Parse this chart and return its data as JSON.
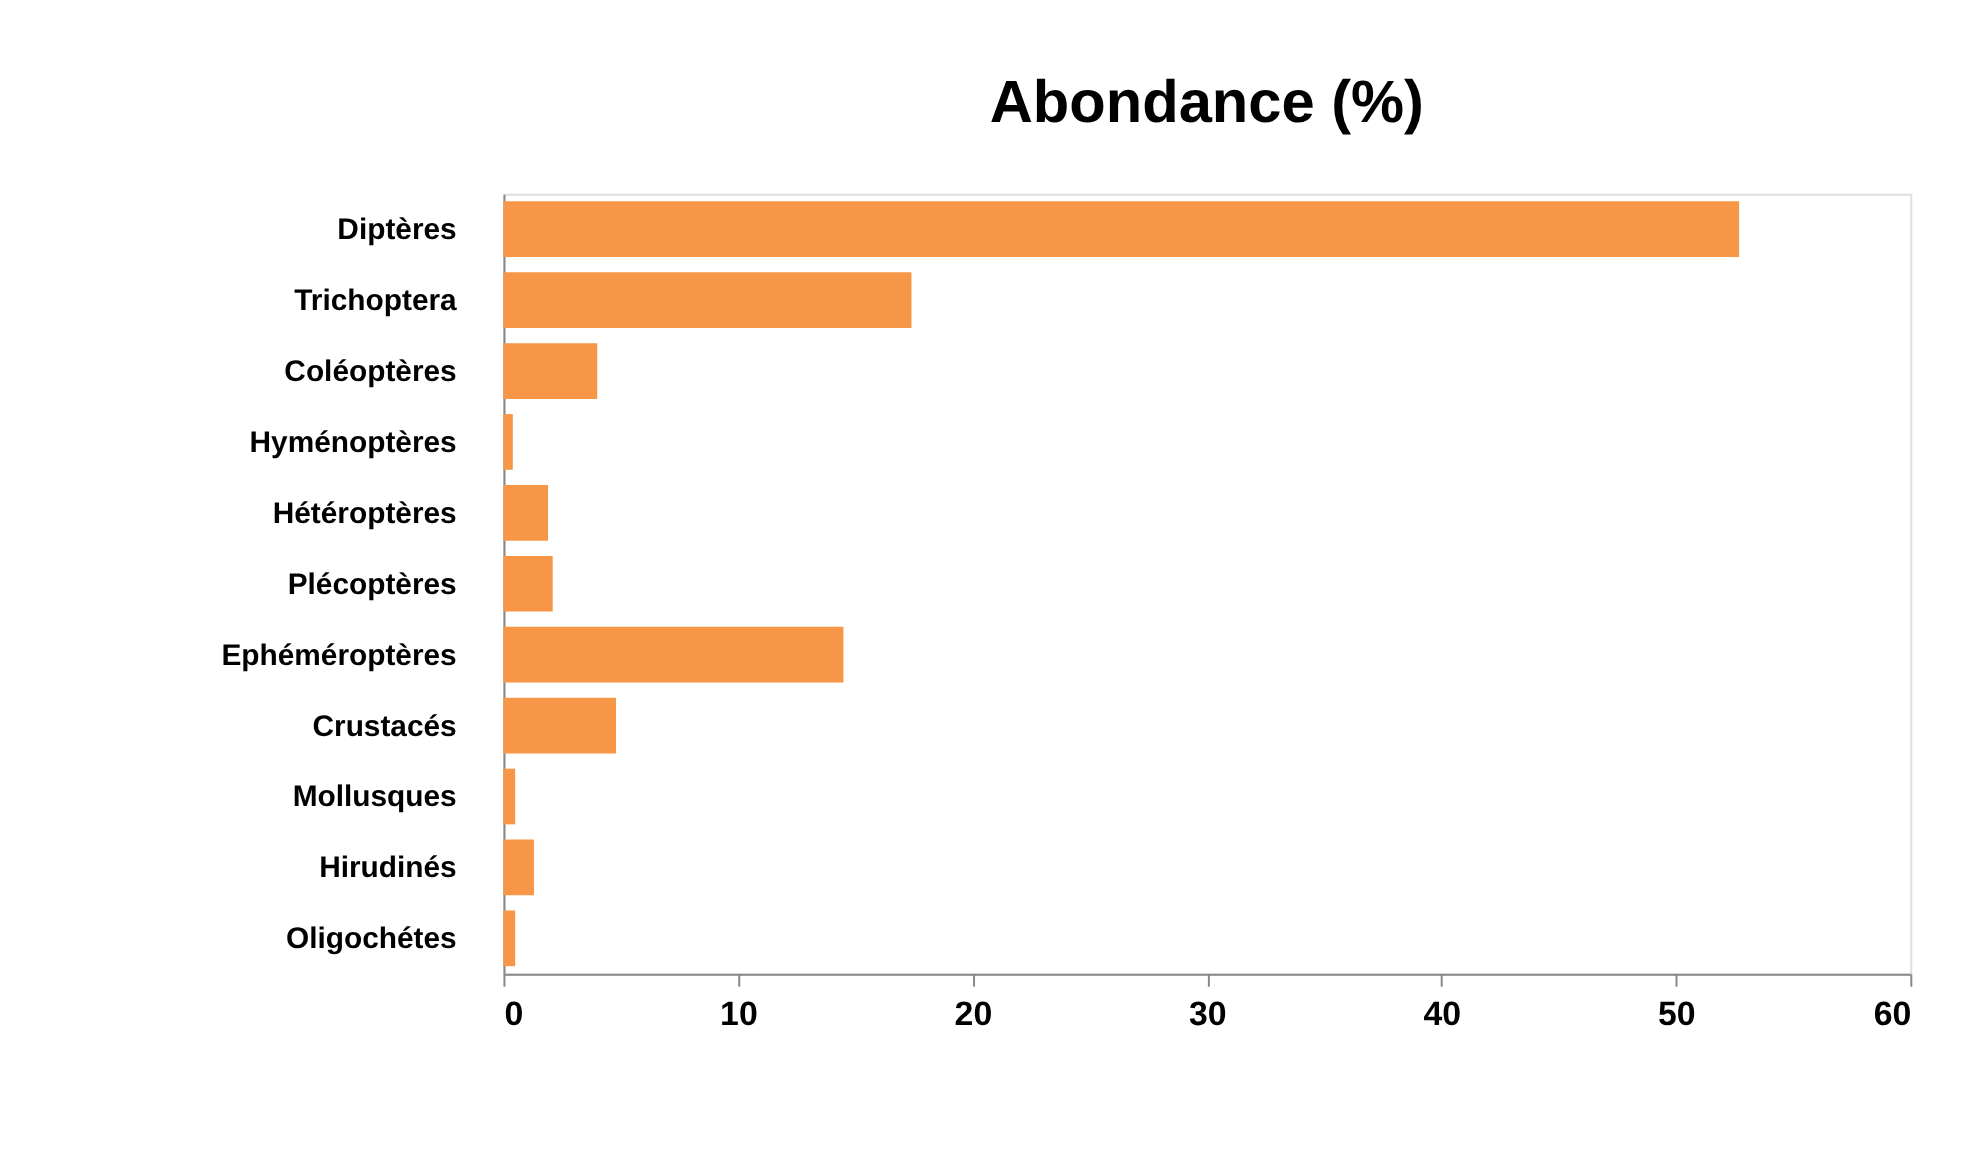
{
  "chart_data": {
    "type": "bar",
    "orientation": "horizontal",
    "title": "Abondance (%)",
    "categories": [
      "Diptères",
      "Trichoptera",
      "Coléoptères",
      "Hyménoptères",
      "Hétéroptères",
      "Plécoptères",
      "Ephéméroptères",
      "Crustacés",
      "Mollusques",
      "Hirudinés",
      "Oligochétes"
    ],
    "values": [
      52.7,
      17.4,
      4.0,
      0.4,
      1.9,
      2.1,
      14.5,
      4.8,
      0.5,
      1.3,
      0.5
    ],
    "color": "#f79646",
    "xlim": [
      0,
      60
    ],
    "xticks": [
      0,
      10,
      20,
      30,
      40,
      50,
      60
    ],
    "grid": false
  }
}
